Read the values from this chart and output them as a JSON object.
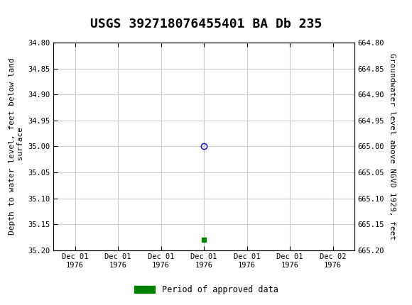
{
  "title": "USGS 392718076455401 BA Db 235",
  "left_ylabel": "Depth to water level, feet below land\n surface",
  "right_ylabel": "Groundwater level above NGVD 1929, feet",
  "xlabel": "",
  "ylim_left": [
    34.8,
    35.2
  ],
  "ylim_right": [
    664.8,
    665.2
  ],
  "left_yticks": [
    34.8,
    34.85,
    34.9,
    34.95,
    35.0,
    35.05,
    35.1,
    35.15,
    35.2
  ],
  "right_yticks": [
    664.8,
    664.85,
    664.9,
    664.95,
    665.0,
    665.05,
    665.1,
    665.15,
    665.2
  ],
  "xtick_labels": [
    "Dec 01\n1976",
    "Dec 01\n1976",
    "Dec 01\n1976",
    "Dec 01\n1976",
    "Dec 01\n1976",
    "Dec 01\n1976",
    "Dec 02\n1976"
  ],
  "xtick_positions": [
    0,
    1,
    2,
    3,
    4,
    5,
    6
  ],
  "data_point_x": 3.0,
  "data_point_y": 35.0,
  "data_point_color": "#0000cc",
  "data_point_marker": "o",
  "data_point_facecolor": "none",
  "data_point_size": 6,
  "green_marker_x": 3.0,
  "green_marker_y": 35.18,
  "green_marker_color": "#008000",
  "green_marker_size": 5,
  "header_bg_color": "#1a6b3a",
  "header_text_color": "#ffffff",
  "grid_color": "#cccccc",
  "bg_color": "#ffffff",
  "font_family": "DejaVu Sans Mono",
  "legend_label": "Period of approved data",
  "legend_color": "#008000",
  "title_fontsize": 13
}
